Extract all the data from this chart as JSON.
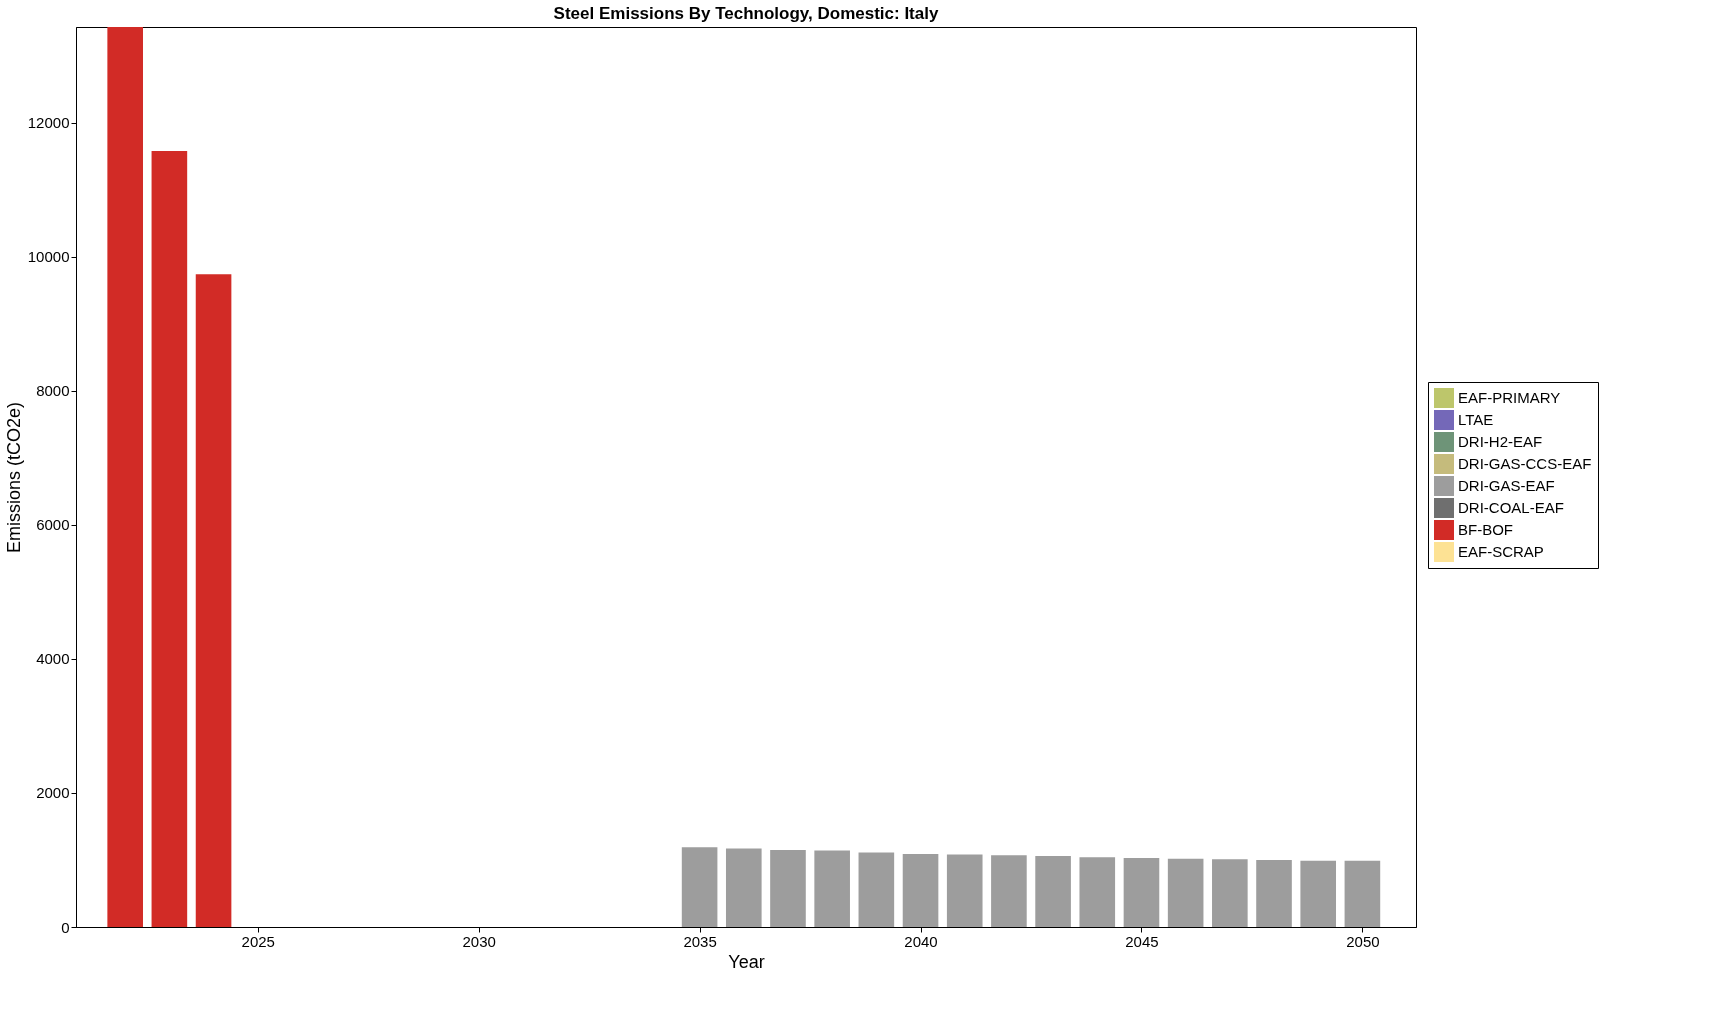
{
  "chart_data": {
    "type": "bar",
    "title": "Steel Emissions By Technology, Domestic: Italy",
    "xlabel": "Year",
    "ylabel": "Emissions (tCO2e)",
    "x": [
      2022,
      2023,
      2024,
      2035,
      2036,
      2037,
      2038,
      2039,
      2040,
      2041,
      2042,
      2043,
      2044,
      2045,
      2046,
      2047,
      2048,
      2049,
      2050
    ],
    "series": [
      {
        "name": "EAF-PRIMARY",
        "color": "#bdc66b",
        "values": [
          0,
          0,
          0,
          0,
          0,
          0,
          0,
          0,
          0,
          0,
          0,
          0,
          0,
          0,
          0,
          0,
          0,
          0,
          0
        ]
      },
      {
        "name": "LTAE",
        "color": "#7468b8",
        "values": [
          0,
          0,
          0,
          0,
          0,
          0,
          0,
          0,
          0,
          0,
          0,
          0,
          0,
          0,
          0,
          0,
          0,
          0,
          0
        ]
      },
      {
        "name": "DRI-H2-EAF",
        "color": "#6e9478",
        "values": [
          0,
          0,
          0,
          0,
          0,
          0,
          0,
          0,
          0,
          0,
          0,
          0,
          0,
          0,
          0,
          0,
          0,
          0,
          0
        ]
      },
      {
        "name": "DRI-GAS-CCS-EAF",
        "color": "#c5bb7c",
        "values": [
          0,
          0,
          0,
          0,
          0,
          0,
          0,
          0,
          0,
          0,
          0,
          0,
          0,
          0,
          0,
          0,
          0,
          0,
          0
        ]
      },
      {
        "name": "DRI-GAS-EAF",
        "color": "#9d9d9d",
        "values": [
          0,
          0,
          0,
          1190,
          1170,
          1150,
          1140,
          1110,
          1090,
          1080,
          1070,
          1060,
          1040,
          1030,
          1020,
          1010,
          1000,
          990,
          990
        ]
      },
      {
        "name": "DRI-COAL-EAF",
        "color": "#6f6f6f",
        "values": [
          0,
          0,
          0,
          0,
          0,
          0,
          0,
          0,
          0,
          0,
          0,
          0,
          0,
          0,
          0,
          0,
          0,
          0,
          0
        ]
      },
      {
        "name": "BF-BOF",
        "color": "#d22b26",
        "values": [
          13430,
          11580,
          9740,
          0,
          0,
          0,
          0,
          0,
          0,
          0,
          0,
          0,
          0,
          0,
          0,
          0,
          0,
          0,
          0
        ]
      },
      {
        "name": "EAF-SCRAP",
        "color": "#fde294",
        "values": [
          0,
          0,
          0,
          0,
          0,
          0,
          0,
          0,
          0,
          0,
          0,
          0,
          0,
          0,
          0,
          0,
          0,
          0,
          0
        ]
      }
    ],
    "xlim": [
      2021,
      2051.1
    ],
    "xticks": [
      2025,
      2030,
      2035,
      2040,
      2045,
      2050
    ],
    "ylim": [
      0,
      13430
    ],
    "yticks": [
      0,
      2000,
      4000,
      6000,
      8000,
      10000,
      12000
    ],
    "grid": false,
    "legend": "right"
  }
}
